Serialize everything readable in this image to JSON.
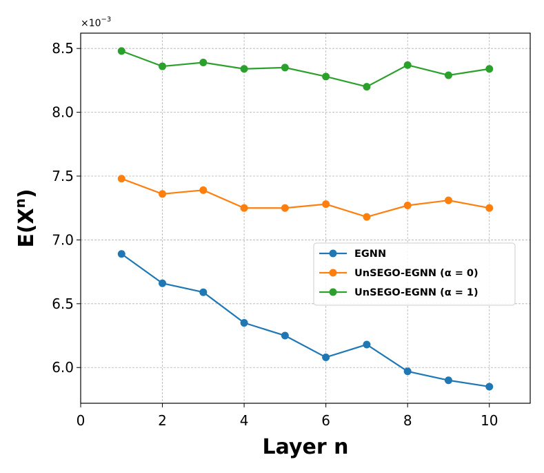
{
  "chart_data": {
    "type": "line",
    "title": "",
    "xlabel": "Layer n",
    "ylabel_base": "E(X",
    "ylabel_sup": "n",
    "ylabel_close": ")",
    "y_scale_base": "×10",
    "y_scale_exp": "−3",
    "xlim": [
      0,
      11
    ],
    "ylim": [
      5.72,
      8.62
    ],
    "x_ticks": [
      0,
      2,
      4,
      6,
      8,
      10
    ],
    "y_ticks": [
      6.0,
      6.5,
      7.0,
      7.5,
      8.0,
      8.5
    ],
    "x_tick_labels": [
      "0",
      "2",
      "4",
      "6",
      "8",
      "10"
    ],
    "y_tick_labels": [
      "6.0",
      "6.5",
      "7.0",
      "7.5",
      "8.0",
      "8.5"
    ],
    "grid": true,
    "legend_position": "center-right",
    "x": [
      1,
      2,
      3,
      4,
      5,
      6,
      7,
      8,
      9,
      10
    ],
    "series": [
      {
        "name": "EGNN",
        "color": "#1f77b4",
        "values": [
          6.89,
          6.66,
          6.59,
          6.35,
          6.25,
          6.08,
          6.18,
          5.97,
          5.9,
          5.85
        ]
      },
      {
        "name": "UnSEGO-EGNN (α = 0)",
        "color": "#ff7f0e",
        "values": [
          7.48,
          7.36,
          7.39,
          7.25,
          7.25,
          7.28,
          7.18,
          7.27,
          7.31,
          7.25
        ]
      },
      {
        "name": "UnSEGO-EGNN (α = 1)",
        "color": "#2ca02c",
        "values": [
          8.48,
          8.36,
          8.39,
          8.34,
          8.35,
          8.28,
          8.2,
          8.37,
          8.29,
          8.34
        ]
      }
    ]
  }
}
